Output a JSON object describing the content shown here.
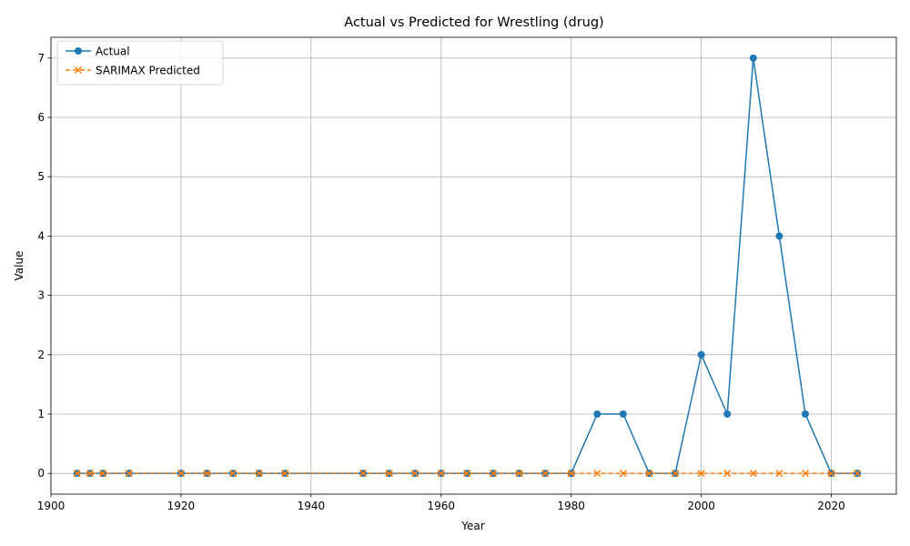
{
  "chart_data": {
    "type": "line",
    "title": "Actual vs Predicted for Wrestling (drug)",
    "xlabel": "Year",
    "ylabel": "Value",
    "xlim": [
      1900,
      2030
    ],
    "ylim": [
      -0.35,
      7.35
    ],
    "xticks": [
      1900,
      1920,
      1940,
      1960,
      1980,
      2000,
      2020
    ],
    "yticks": [
      0,
      1,
      2,
      3,
      4,
      5,
      6,
      7
    ],
    "grid": true,
    "legend_position": "top-left",
    "x": [
      1904,
      1906,
      1908,
      1912,
      1920,
      1924,
      1928,
      1932,
      1936,
      1948,
      1952,
      1956,
      1960,
      1964,
      1968,
      1972,
      1976,
      1980,
      1984,
      1988,
      1992,
      1996,
      2000,
      2004,
      2008,
      2012,
      2016,
      2020,
      2024
    ],
    "series": [
      {
        "name": "Actual",
        "color": "#1f77b4",
        "style": "solid",
        "marker": "circle",
        "values": [
          0,
          0,
          0,
          0,
          0,
          0,
          0,
          0,
          0,
          0,
          0,
          0,
          0,
          0,
          0,
          0,
          0,
          0,
          1,
          1,
          0,
          0,
          2,
          1,
          7,
          4,
          1,
          0,
          0
        ]
      },
      {
        "name": "SARIMAX Predicted",
        "color": "#ff7f0e",
        "style": "dashed",
        "marker": "x",
        "values": [
          0,
          0,
          0,
          0,
          0,
          0,
          0,
          0,
          0,
          0,
          0,
          0,
          0,
          0,
          0,
          0,
          0,
          0,
          0,
          0,
          0,
          0,
          0,
          0,
          0,
          0,
          0,
          0,
          0
        ]
      }
    ]
  }
}
